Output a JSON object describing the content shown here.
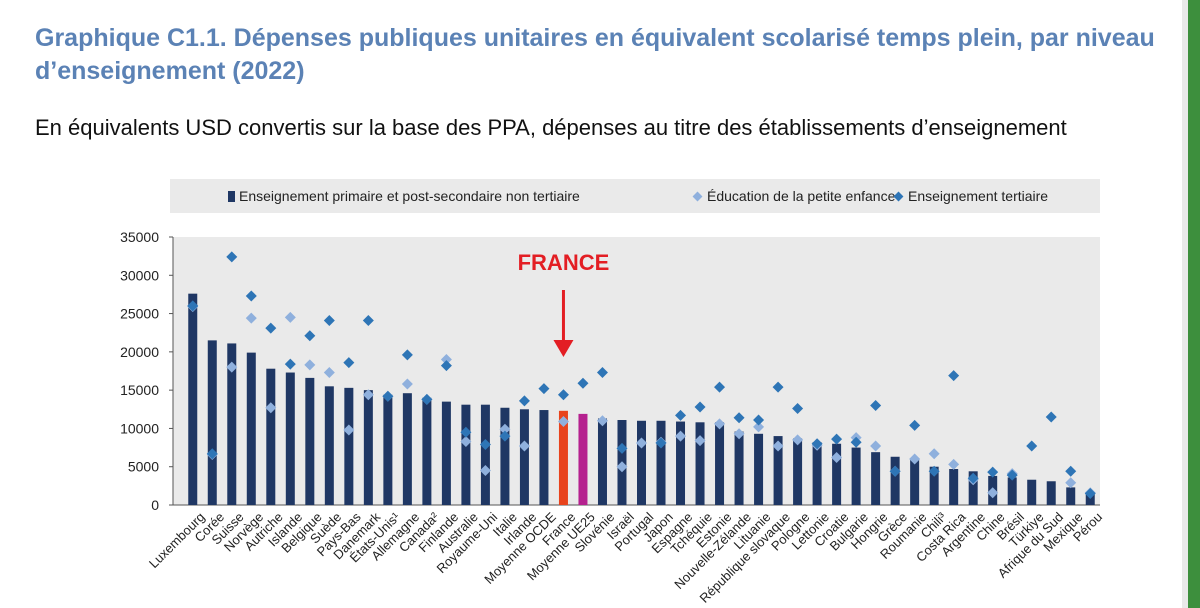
{
  "header": {
    "title": "Graphique C1.1. Dépenses publiques unitaires en équivalent scolarisé temps plein, par niveau d’enseignement (2022)",
    "subtitle": "En équivalents USD convertis sur la base des PPA, dépenses au titre des établissements d’enseignement"
  },
  "legend": {
    "primary": "Enseignement primaire et post-secondaire non tertiaire",
    "early": "Éducation de la petite enfance",
    "tertiary": "Enseignement tertiaire"
  },
  "annotation": {
    "label": "FRANCE"
  },
  "colors": {
    "bar": "#1f3764",
    "france": "#e8431c",
    "ue25": "#b5218f",
    "early": "#8fb0dd",
    "tertiary": "#2e75b6",
    "title": "#5b82b5",
    "annotation": "#e31e24",
    "plotbg": "#eaeaea"
  },
  "chart_data": {
    "type": "bar",
    "title": "",
    "xlabel": "",
    "ylabel": "",
    "ylim": [
      0,
      35000
    ],
    "yticks": [
      0,
      5000,
      10000,
      15000,
      20000,
      25000,
      30000,
      35000
    ],
    "grid": false,
    "categories": [
      "Luxembourg",
      "Corée",
      "Suisse",
      "Norvège",
      "Autriche",
      "Islande",
      "Belgique",
      "Suède",
      "Pays-Bas",
      "Danemark",
      "États-Unis¹",
      "Allemagne",
      "Canada²",
      "Finlande",
      "Australie",
      "Royaume-Uni",
      "Italie",
      "Irlande",
      "Moyenne OCDE",
      "France",
      "Moyenne UE25",
      "Slovénie",
      "Israël",
      "Portugal",
      "Japon",
      "Espagne",
      "Tchéquie",
      "Estonie",
      "Nouvelle-Zélande",
      "Lituanie",
      "République slovaque",
      "Pologne",
      "Lettonie",
      "Croatie",
      "Bulgarie",
      "Hongrie",
      "Grèce",
      "Roumanie",
      "Chili³",
      "Costa Rica",
      "Argentine",
      "Chine",
      "Brésil",
      "Türkiye",
      "Afrique du Sud",
      "Mexique",
      "Pérou"
    ],
    "series": [
      {
        "name": "Enseignement primaire et post-secondaire non tertiaire",
        "values": [
          27600,
          21500,
          21100,
          19900,
          17800,
          17300,
          16600,
          15500,
          15300,
          15000,
          14400,
          14600,
          14000,
          13500,
          13100,
          13100,
          12700,
          12500,
          12400,
          12300,
          11900,
          11300,
          11100,
          11000,
          11000,
          10900,
          10800,
          10800,
          9600,
          9300,
          9000,
          8700,
          8200,
          8000,
          7500,
          6900,
          6300,
          6000,
          5000,
          4700,
          4400,
          3800,
          3600,
          3300,
          3100,
          2300,
          1400
        ]
      },
      {
        "name": "Éducation de la petite enfance",
        "values": [
          25900,
          6600,
          18000,
          24400,
          12700,
          24500,
          18300,
          17300,
          9800,
          14400,
          14200,
          15800,
          13800,
          19000,
          8300,
          4500,
          9900,
          7700,
          null,
          10900,
          null,
          11000,
          5000,
          8100,
          8200,
          9000,
          8400,
          10600,
          9300,
          10200,
          7700,
          8500,
          7800,
          6200,
          8800,
          7700,
          4400,
          6000,
          6700,
          5300,
          3300,
          1600,
          4100,
          null,
          null,
          2900,
          1600
        ]
      },
      {
        "name": "Enseignement tertiaire",
        "values": [
          26000,
          6700,
          32400,
          27300,
          23100,
          18400,
          22100,
          24100,
          18600,
          24100,
          14200,
          19600,
          13800,
          18200,
          9500,
          7900,
          9000,
          13600,
          15200,
          14400,
          15900,
          17300,
          7400,
          null,
          8100,
          11700,
          12800,
          15400,
          11400,
          11100,
          15400,
          12600,
          8000,
          8600,
          8200,
          13000,
          4400,
          10400,
          4400,
          16900,
          3500,
          4300,
          3900,
          7700,
          11500,
          4400,
          1500
        ]
      }
    ]
  }
}
